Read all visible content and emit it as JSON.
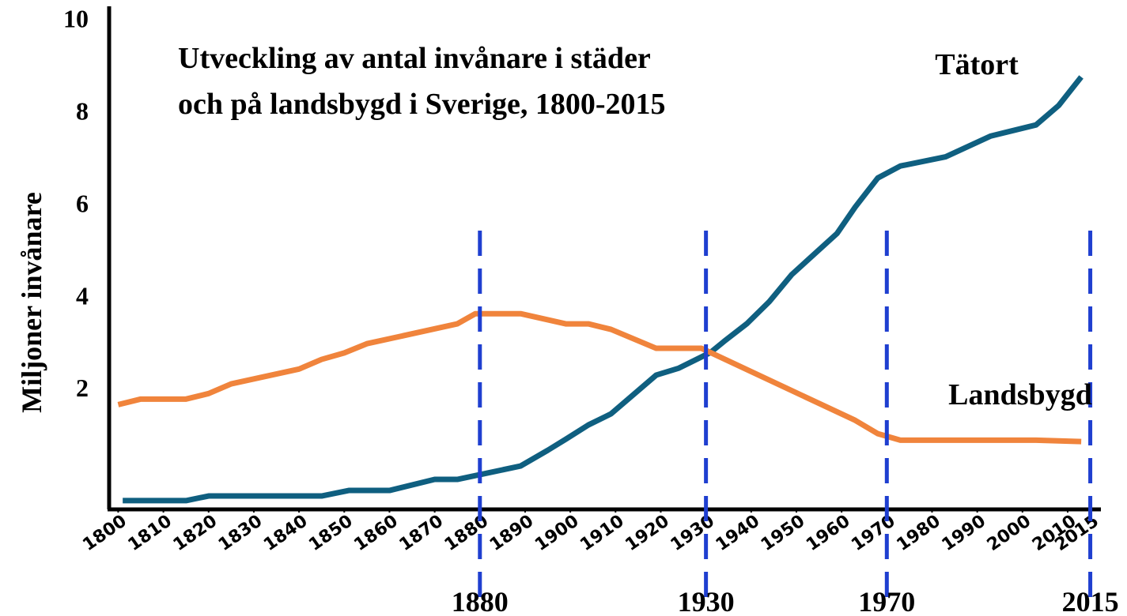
{
  "chart_data": {
    "type": "line",
    "title": [
      "Utveckling av antal invånare i städer",
      "och på landsbygd i Sverige, 1800-2015"
    ],
    "ylabel": "Miljoner invånare",
    "xlim": [
      1798,
      2017
    ],
    "ylim": [
      -0.65,
      10.25
    ],
    "xticks": [
      1800,
      1810,
      1820,
      1830,
      1840,
      1850,
      1860,
      1870,
      1880,
      1890,
      1900,
      1910,
      1920,
      1930,
      1940,
      1950,
      1960,
      1970,
      1980,
      1990,
      2000,
      2010,
      2015
    ],
    "yticks": [
      2,
      4,
      6,
      8,
      10
    ],
    "grid": false,
    "markers": [
      1880,
      1930,
      1970,
      2015
    ],
    "marker_color": "#1f3fd0",
    "series": [
      {
        "name": "Tätort",
        "color": "#0f5f80",
        "x": [
          1801,
          1815,
          1820,
          1845,
          1851,
          1860,
          1870,
          1875,
          1889,
          1895,
          1899,
          1904,
          1909,
          1919,
          1924,
          1931,
          1934,
          1939,
          1944,
          1949,
          1959,
          1963,
          1968,
          1973,
          1983,
          1993,
          2003,
          2008,
          2013
        ],
        "values": [
          -0.46,
          -0.46,
          -0.36,
          -0.36,
          -0.24,
          -0.24,
          0,
          0,
          0.29,
          0.63,
          0.87,
          1.18,
          1.42,
          2.26,
          2.41,
          2.75,
          2.99,
          3.37,
          3.85,
          4.44,
          5.33,
          5.9,
          6.53,
          6.79,
          6.99,
          7.44,
          7.68,
          8.1,
          8.72
        ]
      },
      {
        "name": "Landsbygd",
        "color": "#f0843c",
        "x": [
          1800,
          1805,
          1815,
          1820,
          1825,
          1840,
          1845,
          1850,
          1855,
          1875,
          1879,
          1889,
          1899,
          1904,
          1909,
          1919,
          1923,
          1929,
          1963,
          1968,
          1973,
          2003,
          2013
        ],
        "values": [
          1.62,
          1.74,
          1.74,
          1.86,
          2.07,
          2.39,
          2.6,
          2.74,
          2.94,
          3.37,
          3.59,
          3.59,
          3.37,
          3.37,
          3.25,
          2.84,
          2.84,
          2.84,
          1.28,
          0.99,
          0.85,
          0.85,
          0.82
        ]
      }
    ]
  }
}
